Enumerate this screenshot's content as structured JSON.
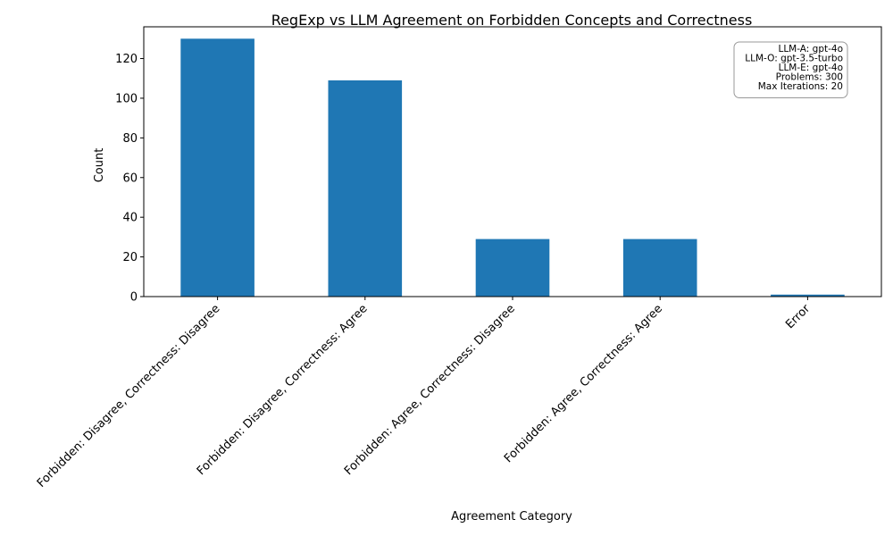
{
  "chart_data": {
    "type": "bar",
    "title": "RegExp vs LLM Agreement on Forbidden Concepts and Correctness",
    "xlabel": "Agreement Category",
    "ylabel": "Count",
    "categories": [
      "Forbidden: Disagree, Correctness: Disagree",
      "Forbidden: Disagree, Correctness: Agree",
      "Forbidden: Agree, Correctness: Disagree",
      "Forbidden: Agree, Correctness: Agree",
      "Error"
    ],
    "values": [
      130,
      109,
      29,
      29,
      1
    ],
    "ylim": [
      0,
      136
    ],
    "yticks": [
      0,
      20,
      40,
      60,
      80,
      100,
      120
    ],
    "bar_color": "#1f77b4",
    "grid": false,
    "annotation_box": {
      "placement": "top-right",
      "lines": [
        "LLM-A: gpt-4o",
        "LLM-O: gpt-3.5-turbo",
        "LLM-E: gpt-4o",
        "Problems: 300",
        "Max Iterations: 20"
      ]
    }
  }
}
